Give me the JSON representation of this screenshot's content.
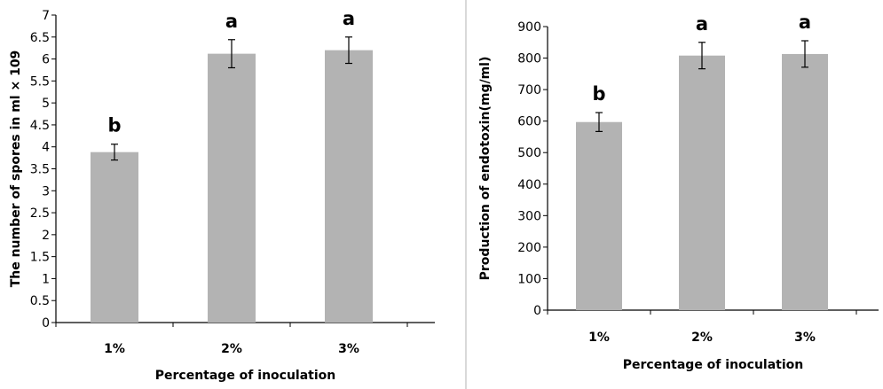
{
  "chart_data": [
    {
      "type": "bar",
      "categories": [
        "1%",
        "2%",
        "3%"
      ],
      "values": [
        3.88,
        6.12,
        6.2
      ],
      "errors": [
        0.18,
        0.32,
        0.3
      ],
      "significance": [
        "b",
        "a",
        "a"
      ],
      "xlabel": "Percentage of inoculation",
      "ylabel": "The number of spores in ml × 109",
      "ylim": [
        0,
        7
      ],
      "yticks": [
        0,
        0.5,
        1,
        1.5,
        2,
        2.5,
        3,
        3.5,
        4,
        4.5,
        5,
        5.5,
        6,
        6.5,
        7
      ],
      "ytick_labels": [
        "0",
        "0.5",
        "1",
        "1.5",
        "2",
        "2.5",
        "3",
        "3.5",
        "4",
        "4.5",
        "5",
        "5.5",
        "6",
        "6.5",
        "7"
      ],
      "bar_color": "#b3b3b3",
      "grid": false,
      "legend": "none"
    },
    {
      "type": "bar",
      "categories": [
        "1%",
        "2%",
        "3%"
      ],
      "values": [
        597,
        808,
        813
      ],
      "errors": [
        30,
        42,
        42
      ],
      "significance": [
        "b",
        "a",
        "a"
      ],
      "xlabel": "Percentage of inoculation",
      "ylabel": "Production of endotoxin(mg/ml)",
      "ylim": [
        0,
        900
      ],
      "yticks": [
        0,
        100,
        200,
        300,
        400,
        500,
        600,
        700,
        800,
        900
      ],
      "ytick_labels": [
        "0",
        "100",
        "200",
        "300",
        "400",
        "500",
        "600",
        "700",
        "800",
        "900"
      ],
      "bar_color": "#b3b3b3",
      "grid": false,
      "legend": "none"
    }
  ]
}
